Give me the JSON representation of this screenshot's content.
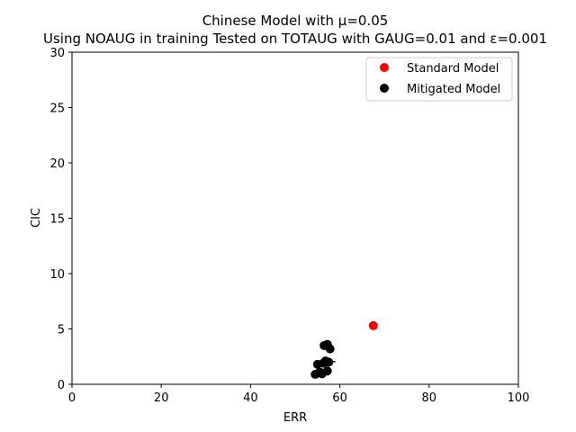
{
  "chart_data": {
    "type": "scatter",
    "title": "Chinese Model with μ=0.05",
    "subtitle": "Using NOAUG in training Tested on TOTAUG with GAUG=0.01 and ε=0.001",
    "xlabel": "ERR",
    "ylabel": "CIC",
    "xlim": [
      0,
      100
    ],
    "ylim": [
      0,
      30
    ],
    "xticks": [
      "0",
      "20",
      "40",
      "60",
      "80",
      "100"
    ],
    "yticks": [
      "0",
      "5",
      "10",
      "15",
      "20",
      "25",
      "30"
    ],
    "grid": false,
    "legend_position": "top-right",
    "series": [
      {
        "name": "Standard Model",
        "color": "#ff0000",
        "points": [
          {
            "x": 67.5,
            "y": 5.3
          }
        ]
      },
      {
        "name": "Mitigated Model",
        "color": "#000000",
        "points": [
          {
            "x": 54.5,
            "y": 0.9
          },
          {
            "x": 55.5,
            "y": 1.1
          },
          {
            "x": 56.0,
            "y": 0.95
          },
          {
            "x": 57.2,
            "y": 1.2
          },
          {
            "x": 55.0,
            "y": 1.8
          },
          {
            "x": 56.3,
            "y": 1.9
          },
          {
            "x": 56.8,
            "y": 2.1
          },
          {
            "x": 57.5,
            "y": 2.0
          },
          {
            "x": 56.5,
            "y": 3.5
          },
          {
            "x": 57.2,
            "y": 3.6
          },
          {
            "x": 57.8,
            "y": 3.2
          }
        ]
      }
    ],
    "error_bars": [
      {
        "x": 55.0,
        "y": 0.95,
        "xerr": 1.5
      },
      {
        "x": 57.5,
        "y": 2.05,
        "xerr": 1.5
      }
    ]
  }
}
